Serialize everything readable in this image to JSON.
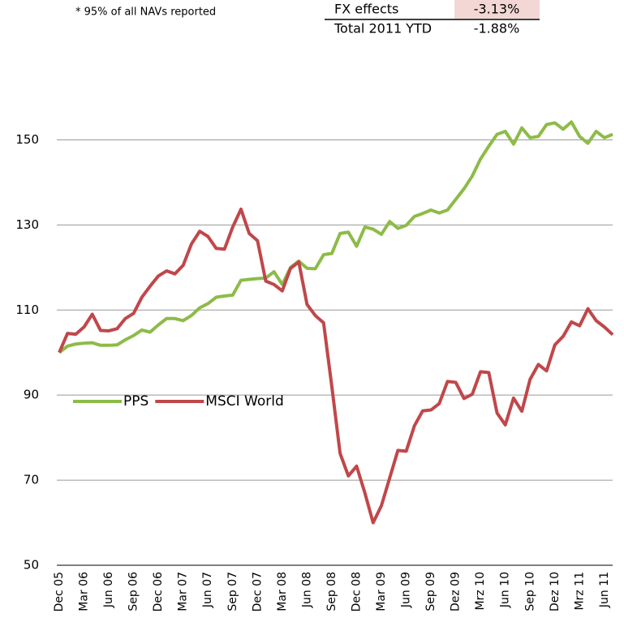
{
  "note": "*  95% of all NAVs reported",
  "table": {
    "rows": [
      [
        "FX effects",
        "-3.13%"
      ],
      [
        "Total 2011 YTD",
        "-1.88%"
      ]
    ]
  },
  "chart_data": {
    "type": "line",
    "categories": [
      "Dec 05",
      null,
      null,
      "Mar 06",
      null,
      null,
      "Jun 06",
      null,
      null,
      "Sep 06",
      null,
      null,
      "Dec 06",
      null,
      null,
      "Mar 07",
      null,
      null,
      "Jun 07",
      null,
      null,
      "Sep 07",
      null,
      null,
      "Dec 07",
      null,
      null,
      "Mar 08",
      null,
      null,
      "Jun 08",
      null,
      null,
      "Sep 08",
      null,
      null,
      "Dec 08",
      null,
      null,
      "Mar 09",
      null,
      null,
      "Jun 09",
      null,
      null,
      "Sep 09",
      null,
      null,
      "Dez 09",
      null,
      null,
      "Mrz 10",
      null,
      null,
      "Jun 10",
      null,
      null,
      "Sep 10",
      null,
      null,
      "Dez 10",
      null,
      null,
      "Mrz 11",
      null,
      null,
      "Jun 11",
      null
    ],
    "series": [
      {
        "name": "PPS",
        "color": "#8dbb48",
        "values": [
          100,
          101.5,
          102,
          102.2,
          102.3,
          101.7,
          101.7,
          101.8,
          103,
          104,
          105.3,
          104.8,
          106.5,
          108,
          108,
          107.5,
          108.7,
          110.5,
          111.5,
          113,
          113.3,
          113.5,
          117,
          117.2,
          117.4,
          117.5,
          119,
          116,
          120,
          121.5,
          119.8,
          119.7,
          123,
          123.3,
          128,
          128.3,
          125,
          129.5,
          129,
          127.8,
          130.8,
          129.2,
          129.9,
          132,
          132.7,
          133.5,
          132.8,
          133.5,
          136,
          138.5,
          141.5,
          145.5,
          148.5,
          151.3,
          152,
          149,
          152.8,
          150.5,
          150.8,
          153.6,
          154,
          152.5,
          154.2,
          150.8,
          149.2,
          152,
          150.5,
          151.3
        ]
      },
      {
        "name": "MSCI World",
        "color": "#c0474a",
        "values": [
          100,
          104.5,
          104.3,
          106,
          109,
          105.2,
          105.1,
          105.6,
          108,
          109.2,
          113,
          115.6,
          118,
          119.2,
          118.5,
          120.5,
          125.5,
          128.5,
          127.3,
          124.5,
          124.3,
          129.5,
          133.7,
          128,
          126.3,
          116.8,
          116,
          114.5,
          119.8,
          121.3,
          111.3,
          108.7,
          107,
          92,
          76.3,
          71,
          73.3,
          67,
          60,
          64,
          70.5,
          77,
          76.8,
          82.8,
          86.3,
          86.5,
          88,
          93.2,
          93,
          89.2,
          90.2,
          95.5,
          95.3,
          85.8,
          83,
          89.3,
          86.2,
          93.7,
          97.2,
          95.7,
          101.8,
          103.8,
          107.2,
          106.3,
          110.3,
          107.5,
          106,
          104.2
        ]
      }
    ],
    "ylim": [
      50,
      160
    ],
    "yticks": [
      50,
      70,
      90,
      110,
      130,
      150
    ],
    "grid": true,
    "legend": "left"
  }
}
